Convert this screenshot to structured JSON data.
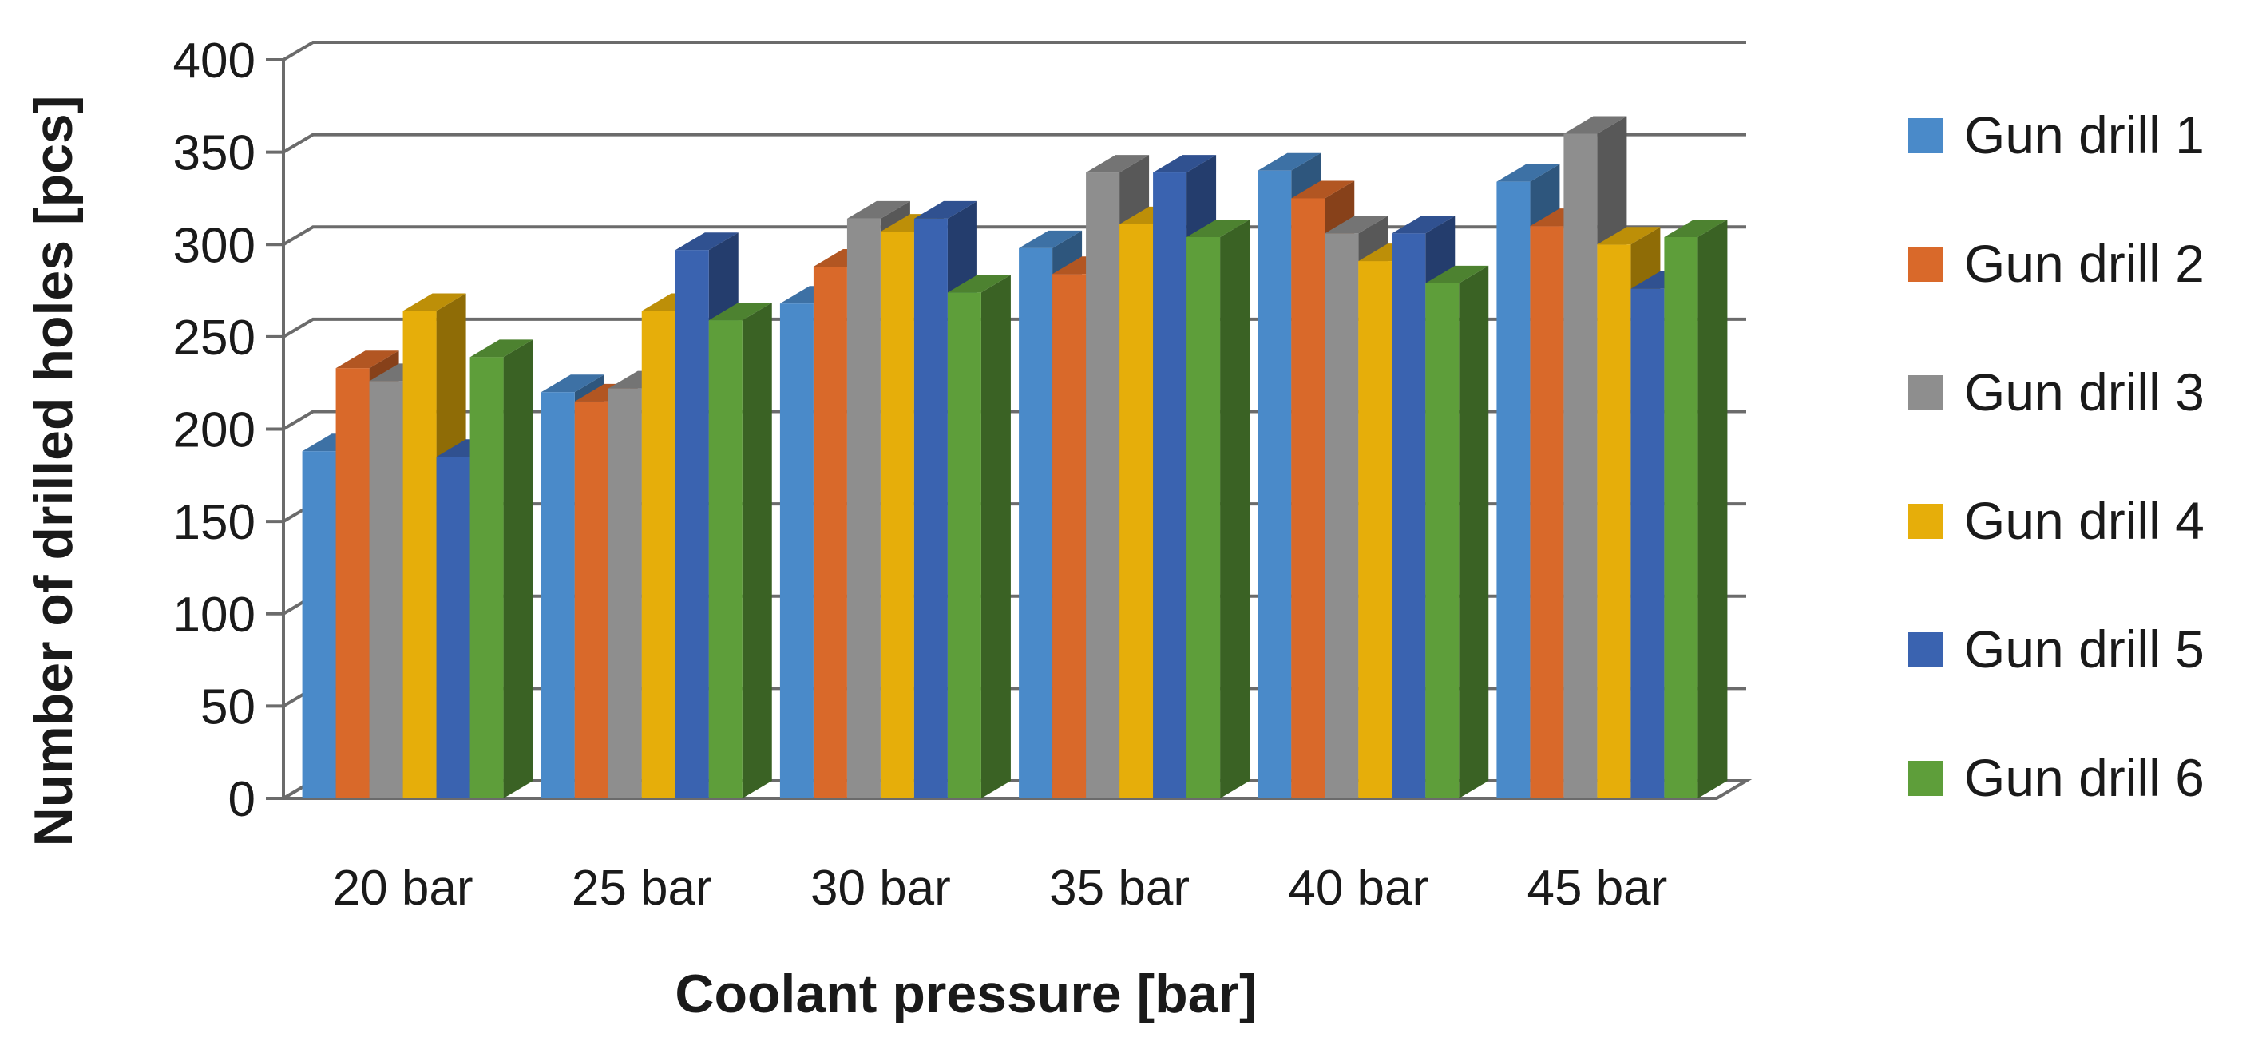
{
  "chart_data": {
    "type": "bar",
    "style": "3d-clustered-column",
    "title": "",
    "xlabel": "Coolant pressure [bar]",
    "ylabel": "Number of drilled holes [pcs]",
    "ylim": [
      0,
      400
    ],
    "yticks": [
      0,
      50,
      100,
      150,
      200,
      250,
      300,
      350,
      400
    ],
    "grid": true,
    "legend_position": "right",
    "categories": [
      "20 bar",
      "25 bar",
      "30 bar",
      "35 bar",
      "40 bar",
      "45 bar"
    ],
    "series": [
      {
        "name": "Gun drill 1",
        "color": "#4A8AC9",
        "values": [
          188,
          220,
          268,
          298,
          340,
          334
        ]
      },
      {
        "name": "Gun drill 2",
        "color": "#D9692A",
        "values": [
          233,
          215,
          288,
          284,
          325,
          310
        ]
      },
      {
        "name": "Gun drill 3",
        "color": "#8E8E8E",
        "values": [
          226,
          222,
          314,
          339,
          306,
          360
        ]
      },
      {
        "name": "Gun drill 4",
        "color": "#E6AE0A",
        "values": [
          264,
          264,
          307,
          311,
          291,
          300
        ]
      },
      {
        "name": "Gun drill 5",
        "color": "#3A63B0",
        "values": [
          185,
          297,
          314,
          339,
          306,
          276
        ]
      },
      {
        "name": "Gun drill 6",
        "color": "#5E9E3A",
        "values": [
          239,
          259,
          274,
          304,
          279,
          304
        ]
      }
    ]
  }
}
